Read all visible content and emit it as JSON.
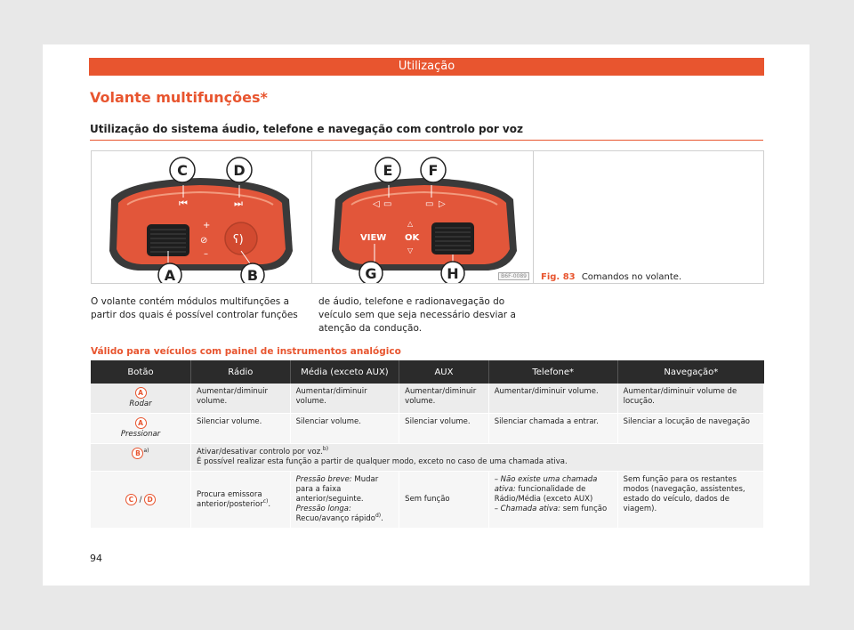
{
  "header": {
    "title": "Utilização"
  },
  "section_title": "Volante multifunções*",
  "subtitle": "Utilização do sistema áudio, telefone e navegação com controlo por voz",
  "figure": {
    "number": "Fig. 83",
    "caption": "Comandos no volante.",
    "code": "B6F-0089",
    "callouts_left": [
      "C",
      "D",
      "A",
      "B"
    ],
    "callouts_right": [
      "E",
      "F",
      "G",
      "H"
    ],
    "button_view": "VIEW",
    "button_ok": "OK",
    "colors": {
      "accent": "#e8552f",
      "panel_orange": "#e2563a",
      "dark_frame": "#3a3a3a"
    }
  },
  "intro": {
    "col1": "O volante contém módulos multifunções a partir dos quais é possível controlar funções",
    "col2": "de áudio, telefone e radionavegação do veículo sem que seja necessário desviar a atenção da condução."
  },
  "valid_title": "Válido para veículos com painel de instrumentos analógico",
  "table": {
    "headers": [
      "Botão",
      "Rádio",
      "Média (exceto AUX)",
      "AUX",
      "Telefone*",
      "Navegação*"
    ],
    "row1": {
      "key": "A",
      "key_sub": "Rodar",
      "radio": "Aumentar/diminuir volume.",
      "media": "Aumentar/diminuir volume.",
      "aux": "Aumentar/diminuir volume.",
      "phone": "Aumentar/diminuir volume.",
      "nav": "Aumentar/diminuir volume de locução."
    },
    "row2": {
      "key": "A",
      "key_sub": "Pressionar",
      "radio": "Silenciar volume.",
      "media": "Silenciar volume.",
      "aux": "Silenciar volume.",
      "phone": "Silenciar chamada a entrar.",
      "nav": "Silenciar a locução de navegação"
    },
    "row3": {
      "key": "B",
      "key_note": "a)",
      "line1": "Ativar/desativar controlo por voz.",
      "line1_note": "b)",
      "line2": "É possível realizar esta função a partir de qualquer modo, exceto no caso de uma chamada ativa."
    },
    "row4": {
      "key1": "C",
      "sep": "/",
      "key2": "D",
      "radio": "Procura emissora anterior/posterior",
      "radio_note": "c)",
      "media_l1_it": "Pressão breve:",
      "media_l1": " Mudar para a faixa anterior/seguinte.",
      "media_l2_it": "Pressão longa:",
      "media_l2": " Recuo/avanço rápido",
      "media_note": "d)",
      "aux": "Sem função",
      "phone_l1_it": "– Não existe uma chamada ativa:",
      "phone_l1": " funcionalidade de Rádio/Média (exceto AUX)",
      "phone_l2_it": "– Chamada ativa:",
      "phone_l2": " sem função",
      "nav": "Sem função para os restantes modos (navegação, assistentes, estado do veículo, dados de viagem)."
    }
  },
  "page_number": "94"
}
